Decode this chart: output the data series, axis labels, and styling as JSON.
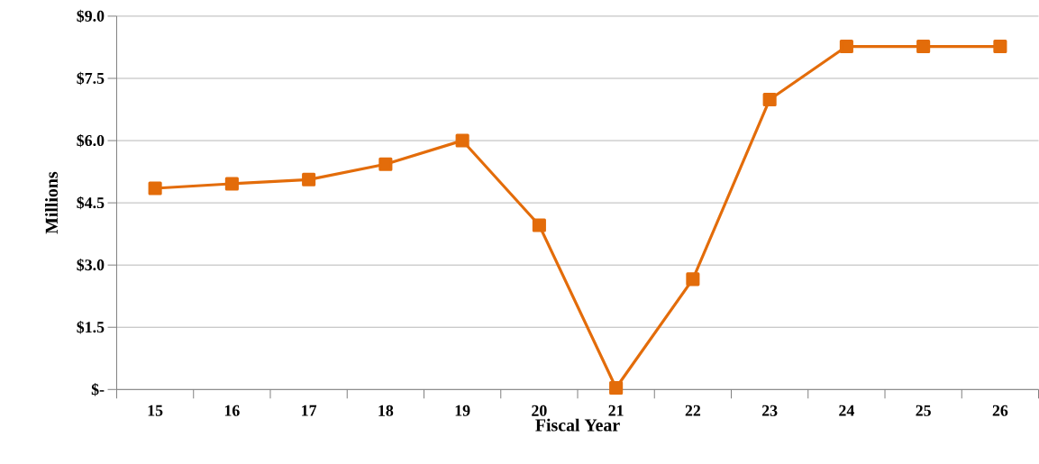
{
  "chart_data": {
    "type": "line",
    "xlabel": "Fiscal Year",
    "ylabel": "Millions",
    "categories": [
      "15",
      "16",
      "17",
      "18",
      "19",
      "20",
      "21",
      "22",
      "23",
      "24",
      "25",
      "26"
    ],
    "series": [
      {
        "color": "#e36c0a",
        "values": [
          4.85,
          4.96,
          5.06,
          5.43,
          6.0,
          3.96,
          0.04,
          2.66,
          6.99,
          8.27,
          8.27,
          8.27
        ]
      }
    ],
    "ylim": [
      0,
      9
    ],
    "yticks": [
      {
        "value": 0,
        "label": "$-"
      },
      {
        "value": 1.5,
        "label": "$1.5"
      },
      {
        "value": 3,
        "label": "$3.0"
      },
      {
        "value": 4.5,
        "label": "$4.5"
      },
      {
        "value": 6,
        "label": "$6.0"
      },
      {
        "value": 7.5,
        "label": "$7.5"
      },
      {
        "value": 9,
        "label": "$9.0"
      }
    ],
    "grid": "y",
    "marker": "square",
    "line_style": "solid"
  }
}
